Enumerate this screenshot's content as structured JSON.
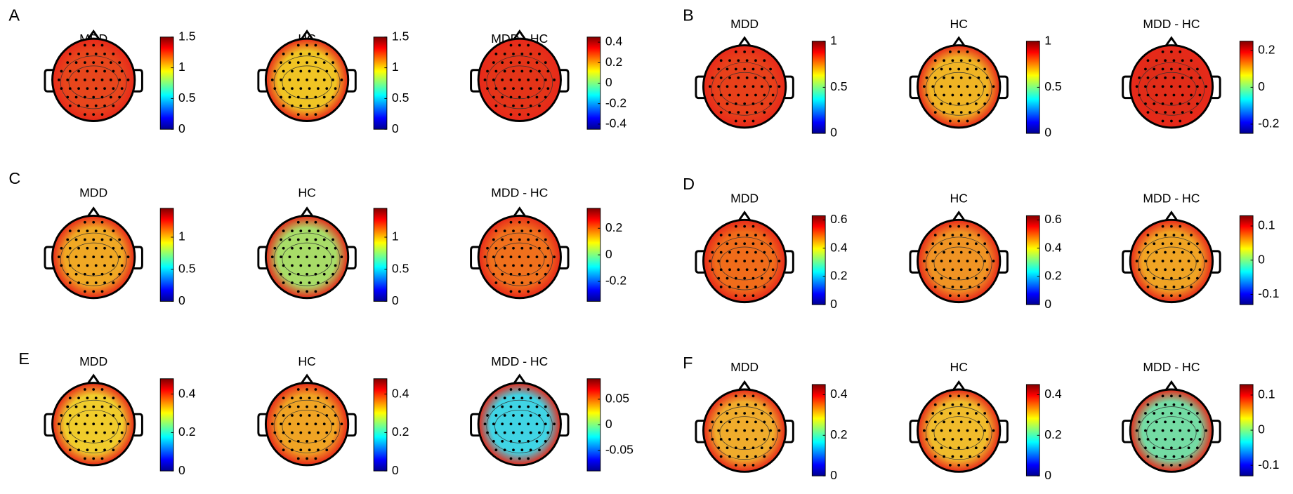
{
  "panels": [
    {
      "label": "A",
      "maps": [
        {
          "title": "MDD",
          "color": "#e8461c",
          "clim": [
            0,
            1.5
          ],
          "ticks": [
            0,
            0.5,
            1,
            1.5
          ]
        },
        {
          "title": "HC",
          "color": "#f0c424",
          "clim": [
            0,
            1.5
          ],
          "ticks": [
            0,
            0.5,
            1,
            1.5
          ]
        },
        {
          "title": "MDD - HC",
          "color": "#e43418",
          "clim": [
            -0.45,
            0.45
          ],
          "ticks": [
            -0.4,
            -0.2,
            0,
            0.2,
            0.4
          ]
        }
      ]
    },
    {
      "label": "B",
      "maps": [
        {
          "title": "MDD",
          "color": "#e8401a",
          "clim": [
            0,
            1
          ],
          "ticks": [
            0,
            0.5,
            1
          ]
        },
        {
          "title": "HC",
          "color": "#f0b424",
          "clim": [
            0,
            1
          ],
          "ticks": [
            0,
            0.5,
            1
          ]
        },
        {
          "title": "MDD - HC",
          "color": "#e02c18",
          "clim": [
            -0.25,
            0.25
          ],
          "ticks": [
            -0.2,
            0,
            0.2
          ]
        }
      ]
    },
    {
      "label": "C",
      "maps": [
        {
          "title": "MDD",
          "color": "#f0a824",
          "clim": [
            0,
            1.45
          ],
          "ticks": [
            0,
            0.5,
            1
          ]
        },
        {
          "title": "HC",
          "color": "#a8dc68",
          "clim": [
            0,
            1.45
          ],
          "ticks": [
            0,
            0.5,
            1
          ]
        },
        {
          "title": "MDD - HC",
          "color": "#f0701c",
          "clim": [
            -0.35,
            0.35
          ],
          "ticks": [
            -0.2,
            0,
            0.2
          ]
        }
      ]
    },
    {
      "label": "D",
      "maps": [
        {
          "title": "MDD",
          "color": "#f06c1a",
          "clim": [
            0,
            0.63
          ],
          "ticks": [
            0,
            0.2,
            0.4,
            0.6
          ]
        },
        {
          "title": "HC",
          "color": "#f09424",
          "clim": [
            0,
            0.63
          ],
          "ticks": [
            0,
            0.2,
            0.4,
            0.6
          ]
        },
        {
          "title": "MDD - HC",
          "color": "#f0a424",
          "clim": [
            -0.13,
            0.13
          ],
          "ticks": [
            -0.1,
            0,
            0.1
          ]
        }
      ]
    },
    {
      "label": "E",
      "maps": [
        {
          "title": "MDD",
          "color": "#f0cc2c",
          "clim": [
            0,
            0.48
          ],
          "ticks": [
            0,
            0.2,
            0.4
          ]
        },
        {
          "title": "HC",
          "color": "#f0a424",
          "clim": [
            0,
            0.48
          ],
          "ticks": [
            0,
            0.2,
            0.4
          ]
        },
        {
          "title": "MDD - HC",
          "color": "#40d4e4",
          "clim": [
            -0.09,
            0.09
          ],
          "ticks": [
            -0.05,
            0,
            0.05
          ]
        }
      ]
    },
    {
      "label": "F",
      "maps": [
        {
          "title": "MDD",
          "color": "#f0ac2c",
          "clim": [
            0,
            0.45
          ],
          "ticks": [
            0,
            0.2,
            0.4
          ]
        },
        {
          "title": "HC",
          "color": "#f0bc2c",
          "clim": [
            0,
            0.45
          ],
          "ticks": [
            0,
            0.2,
            0.4
          ]
        },
        {
          "title": "MDD - HC",
          "color": "#74dca4",
          "clim": [
            -0.13,
            0.13
          ],
          "ticks": [
            -0.1,
            0,
            0.1
          ]
        }
      ]
    }
  ]
}
